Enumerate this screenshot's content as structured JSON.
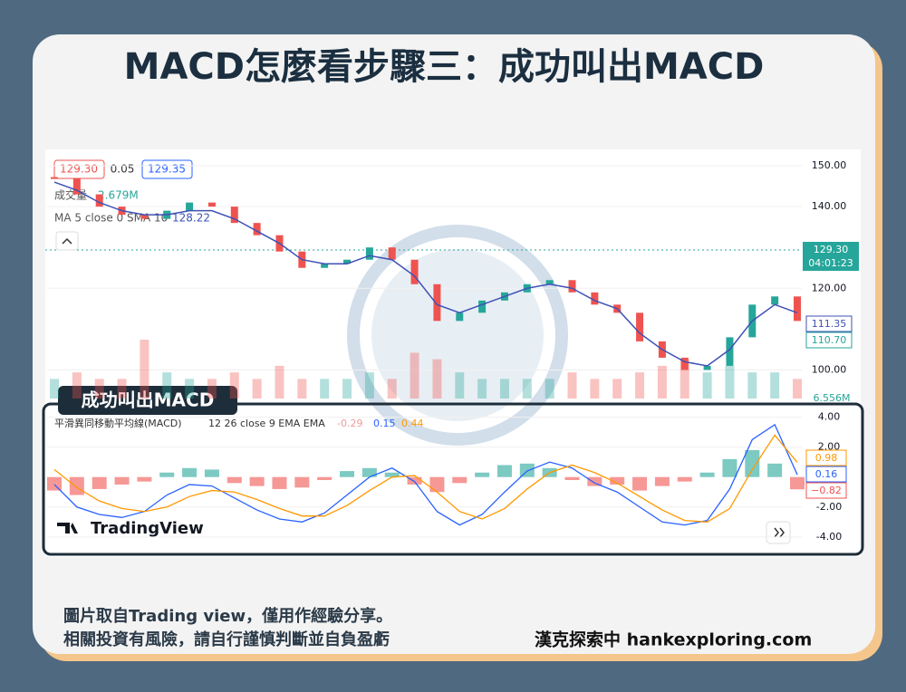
{
  "header": {
    "title": "MACD怎麼看步驟三：成功叫出MACD"
  },
  "legend": {
    "open_tag": "129.30",
    "spread": "0.05",
    "close_tag": "129.35",
    "volume_label": "成交量",
    "volume_value": "2.679M",
    "ma_label": "MA 5 close 0 SMA 10",
    "ma_value": "128.22"
  },
  "price_tags": {
    "last": "129.30",
    "countdown": "04:01:23",
    "ma_last": "111.35",
    "close_last": "110.70",
    "volume_last": "6.556M"
  },
  "macd_legend": {
    "name": "平滑異同移動平均線(MACD)",
    "params": "12 26 close 9 EMA EMA",
    "hist": "-0.29",
    "macd": "0.15",
    "signal": "0.44"
  },
  "macd_tags": {
    "signal": "0.98",
    "macd": "0.16",
    "hist": "−0.82"
  },
  "badge": "成功叫出MACD",
  "brand": "TradingView",
  "footer": {
    "line1": "圖片取自Trading  view，僅用作經驗分享。",
    "line2": "相關投資有風險，請自行謹慎判斷並自負盈虧",
    "site": "漢克探索中 hankexploring.com"
  },
  "chart_data": [
    {
      "type": "candlestick",
      "xlim": [
        0,
        33
      ],
      "ylim": [
        93,
        154
      ],
      "yticks": [
        {
          "value": 150,
          "label": "150.00"
        },
        {
          "value": 140,
          "label": "140.00"
        },
        {
          "value": 120,
          "label": "120.00"
        },
        {
          "value": 100,
          "label": "100.00"
        }
      ],
      "series": [
        {
          "name": "close",
          "color": "#26a69a",
          "values": [
            147,
            143,
            140,
            138,
            137,
            139,
            141,
            140,
            136,
            133,
            129,
            125,
            126,
            127,
            130,
            127,
            121,
            112,
            114,
            117,
            119,
            121,
            122,
            119,
            116,
            114,
            107,
            103,
            100,
            101,
            108,
            116,
            118,
            112
          ]
        },
        {
          "name": "MA",
          "color": "#3f51b5",
          "values": [
            146,
            144,
            141,
            139,
            138,
            138,
            139,
            139,
            137,
            134,
            131,
            127,
            126,
            126,
            128,
            127,
            123,
            116,
            114,
            116,
            118,
            120,
            121,
            120,
            117,
            115,
            109,
            105,
            102,
            101,
            105,
            112,
            116,
            114
          ]
        }
      ],
      "volume": [
        3,
        4,
        3,
        3,
        9,
        4,
        3,
        3,
        4,
        3,
        5,
        3,
        3,
        3,
        4,
        3,
        7,
        6,
        4,
        3,
        3,
        3,
        3,
        4,
        3,
        3,
        4,
        5,
        6,
        4,
        5,
        4,
        4,
        3
      ]
    },
    {
      "type": "macd",
      "xlim": [
        0,
        33
      ],
      "ylim": [
        -5.1,
        4.7
      ],
      "yticks": [
        {
          "value": 4,
          "label": "4.00"
        },
        {
          "value": 2,
          "label": "2.00"
        },
        {
          "value": -2,
          "label": "-2.00"
        },
        {
          "value": -4,
          "label": "-4.00"
        }
      ],
      "series": [
        {
          "name": "histogram",
          "color": "#26a69a",
          "values": [
            -0.9,
            -1.2,
            -0.8,
            -0.5,
            -0.3,
            0.3,
            0.6,
            0.5,
            -0.4,
            -0.6,
            -0.8,
            -0.7,
            -0.2,
            0.4,
            0.6,
            0.3,
            -0.5,
            -1.0,
            -0.4,
            0.3,
            0.8,
            0.9,
            0.6,
            -0.2,
            -0.6,
            -0.5,
            -0.9,
            -0.6,
            -0.3,
            0.3,
            1.2,
            1.8,
            0.9,
            -0.82
          ]
        },
        {
          "name": "MACD",
          "color": "#2962ff",
          "values": [
            -0.5,
            -2.0,
            -2.5,
            -2.7,
            -2.3,
            -1.2,
            -0.5,
            -0.6,
            -1.4,
            -2.2,
            -2.8,
            -3.0,
            -2.4,
            -1.2,
            0.0,
            0.6,
            -0.3,
            -2.3,
            -3.2,
            -2.5,
            -1.0,
            0.4,
            1.0,
            0.6,
            -0.4,
            -1.0,
            -2.0,
            -3.0,
            -3.2,
            -2.9,
            -0.8,
            2.5,
            3.5,
            0.16
          ]
        },
        {
          "name": "Signal",
          "color": "#ff9800",
          "values": [
            0.5,
            -0.7,
            -1.6,
            -2.1,
            -2.3,
            -2.0,
            -1.3,
            -0.9,
            -1.0,
            -1.5,
            -2.1,
            -2.6,
            -2.6,
            -1.9,
            -0.9,
            0.0,
            0.1,
            -1.0,
            -2.3,
            -2.8,
            -2.1,
            -0.8,
            0.3,
            0.8,
            0.3,
            -0.4,
            -1.3,
            -2.2,
            -2.9,
            -3.0,
            -2.1,
            0.5,
            2.8,
            0.98
          ]
        }
      ]
    }
  ]
}
